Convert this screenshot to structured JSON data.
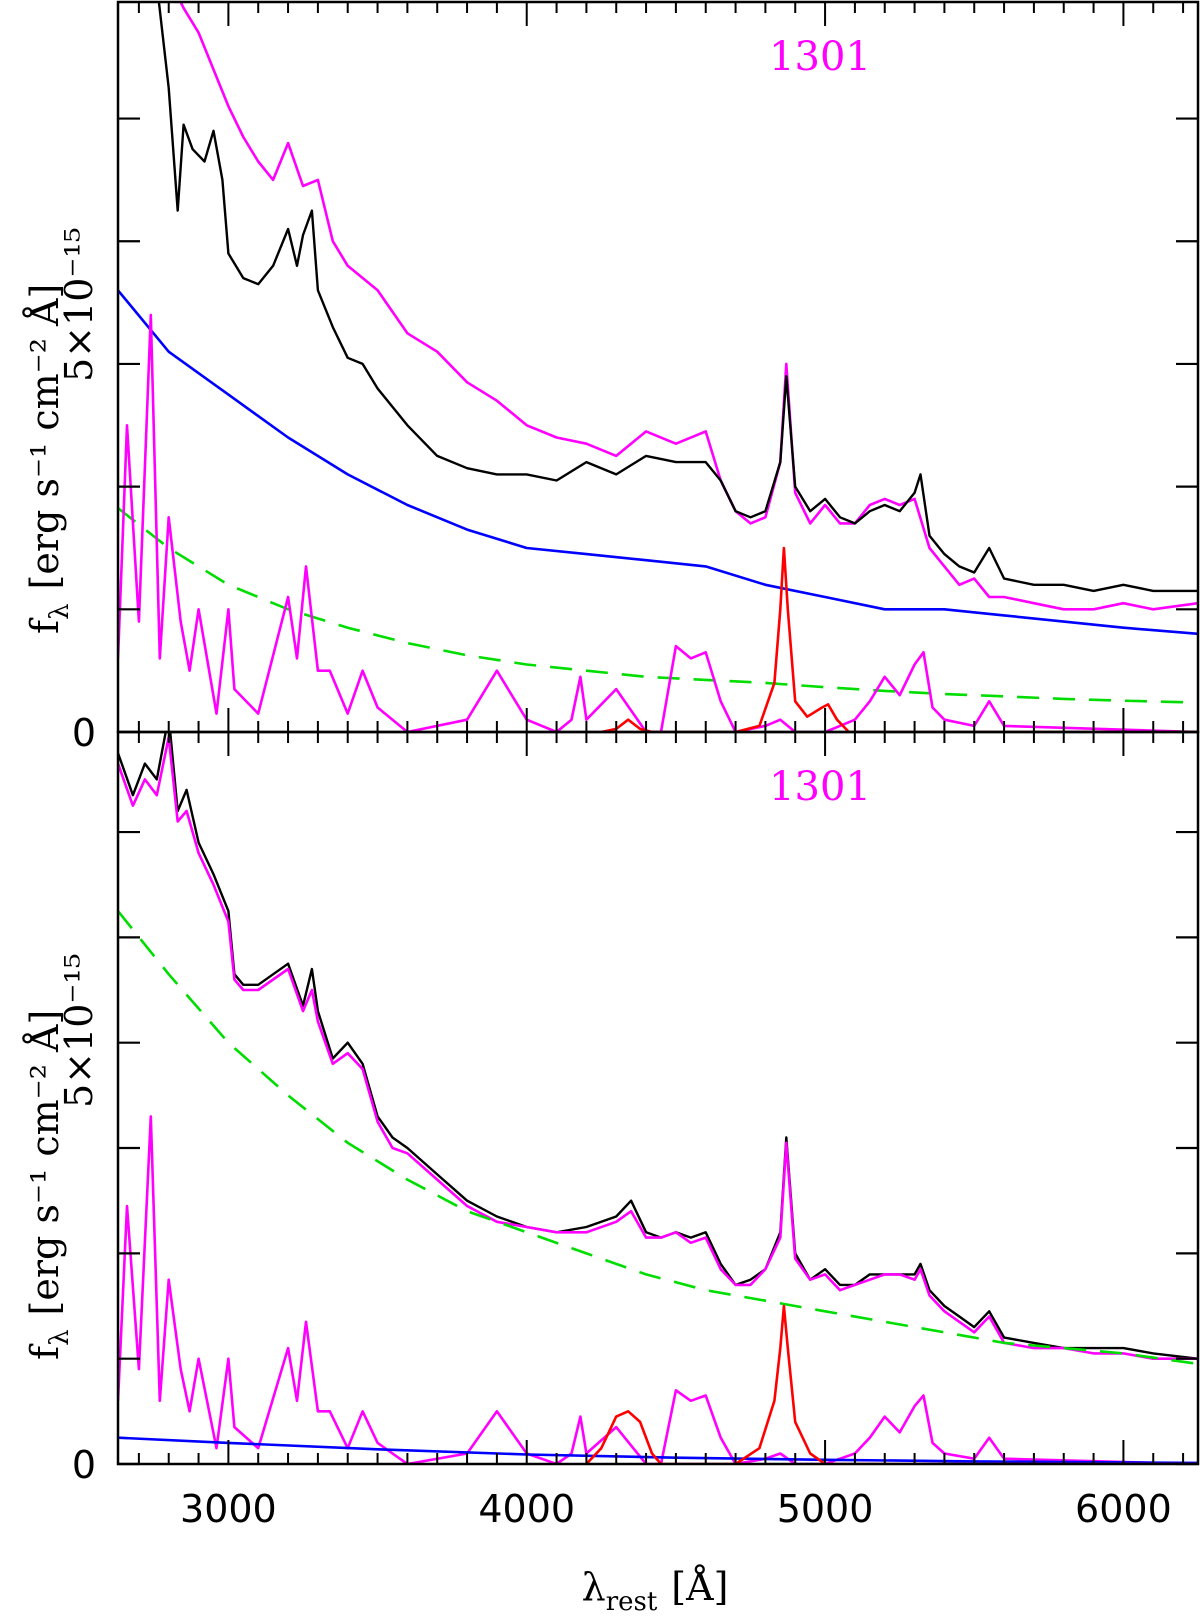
{
  "chart_data": [
    {
      "type": "line",
      "panel": "top",
      "annotation": "1301",
      "ylabel_main": "f",
      "ylabel_sub": "λ",
      "ylabel_units": "[erg s⁻¹ cm⁻² Å]",
      "ylabel_scale": "5×10⁻¹⁵",
      "xlim": [
        2630,
        6250
      ],
      "ylim": [
        0,
        1.19
      ],
      "y_tick_labels": [
        {
          "value": 0,
          "label": "0"
        }
      ],
      "y_tick_values": [
        0,
        0.2,
        0.4,
        0.6,
        0.8,
        1.0,
        1.2
      ],
      "x_tick_values": [
        3000,
        4000,
        5000,
        6000
      ],
      "colors": {
        "black": "#000000",
        "magenta": "#ff00ff",
        "blue": "#0000ff",
        "green": "#00dd00",
        "red": "#ff0000"
      },
      "series": [
        {
          "color": "magenta",
          "style": "solid",
          "x": [
            2630,
            2680,
            2720,
            2760,
            2800,
            2850,
            2900,
            2950,
            3000,
            3050,
            3100,
            3150,
            3200,
            3250,
            3300,
            3350,
            3400,
            3500,
            3600,
            3700,
            3800,
            3900,
            4000,
            4100,
            4200,
            4300,
            4400,
            4500,
            4600,
            4650,
            4700,
            4750,
            4800,
            4850,
            4870,
            4900,
            4950,
            5000,
            5050,
            5100,
            5150,
            5200,
            5250,
            5300,
            5350,
            5400,
            5450,
            5500,
            5550,
            5600,
            5700,
            5800,
            5900,
            6000,
            6100,
            6250
          ],
          "y": [
            1.34,
            1.29,
            1.31,
            1.28,
            1.23,
            1.18,
            1.14,
            1.08,
            1.02,
            0.97,
            0.93,
            0.9,
            0.96,
            0.89,
            0.9,
            0.8,
            0.76,
            0.72,
            0.65,
            0.62,
            0.57,
            0.54,
            0.5,
            0.48,
            0.47,
            0.45,
            0.49,
            0.47,
            0.49,
            0.41,
            0.36,
            0.34,
            0.35,
            0.44,
            0.6,
            0.39,
            0.34,
            0.37,
            0.34,
            0.34,
            0.37,
            0.38,
            0.37,
            0.38,
            0.3,
            0.27,
            0.24,
            0.25,
            0.22,
            0.22,
            0.21,
            0.2,
            0.2,
            0.21,
            0.2,
            0.21
          ]
        },
        {
          "color": "black",
          "style": "solid",
          "x": [
            2630,
            2680,
            2720,
            2760,
            2800,
            2830,
            2850,
            2880,
            2920,
            2950,
            2980,
            3000,
            3050,
            3100,
            3150,
            3200,
            3230,
            3250,
            3280,
            3300,
            3350,
            3400,
            3450,
            3500,
            3600,
            3700,
            3800,
            3900,
            4000,
            4100,
            4200,
            4300,
            4400,
            4500,
            4600,
            4650,
            4700,
            4750,
            4800,
            4850,
            4870,
            4900,
            4950,
            5000,
            5050,
            5100,
            5150,
            5200,
            5250,
            5300,
            5320,
            5350,
            5400,
            5450,
            5500,
            5550,
            5600,
            5700,
            5800,
            5900,
            6000,
            6100,
            6250
          ],
          "y": [
            1.3,
            1.2,
            1.3,
            1.22,
            1.05,
            0.85,
            0.99,
            0.95,
            0.93,
            0.98,
            0.9,
            0.78,
            0.74,
            0.73,
            0.76,
            0.82,
            0.76,
            0.81,
            0.85,
            0.72,
            0.66,
            0.61,
            0.6,
            0.56,
            0.5,
            0.45,
            0.43,
            0.42,
            0.42,
            0.41,
            0.44,
            0.42,
            0.45,
            0.44,
            0.44,
            0.41,
            0.36,
            0.35,
            0.36,
            0.44,
            0.58,
            0.4,
            0.36,
            0.38,
            0.35,
            0.34,
            0.36,
            0.37,
            0.36,
            0.39,
            0.42,
            0.32,
            0.29,
            0.27,
            0.26,
            0.3,
            0.25,
            0.24,
            0.24,
            0.23,
            0.24,
            0.23,
            0.23
          ]
        },
        {
          "color": "blue",
          "style": "solid",
          "x": [
            2630,
            2800,
            3000,
            3200,
            3400,
            3600,
            3800,
            4000,
            4200,
            4400,
            4600,
            4800,
            5000,
            5200,
            5400,
            5600,
            5800,
            6000,
            6250
          ],
          "y": [
            0.72,
            0.62,
            0.55,
            0.48,
            0.42,
            0.37,
            0.33,
            0.3,
            0.29,
            0.28,
            0.27,
            0.24,
            0.22,
            0.2,
            0.2,
            0.19,
            0.18,
            0.17,
            0.16
          ]
        },
        {
          "color": "green",
          "style": "dashed",
          "x": [
            2630,
            2800,
            3000,
            3200,
            3400,
            3600,
            3800,
            4000,
            4200,
            4400,
            4600,
            4800,
            5000,
            5200,
            5400,
            5600,
            5800,
            6000,
            6250
          ],
          "y": [
            0.365,
            0.3,
            0.24,
            0.2,
            0.17,
            0.145,
            0.125,
            0.11,
            0.1,
            0.09,
            0.085,
            0.08,
            0.073,
            0.067,
            0.062,
            0.058,
            0.054,
            0.051,
            0.048
          ]
        },
        {
          "color": "magenta",
          "style": "solid",
          "x": [
            2630,
            2660,
            2700,
            2740,
            2770,
            2800,
            2840,
            2870,
            2900,
            2960,
            3000,
            3020,
            3100,
            3200,
            3230,
            3260,
            3300,
            3340,
            3400,
            3450,
            3500,
            3550,
            3600,
            3800,
            3900,
            4000,
            4100,
            4150,
            4180,
            4200,
            4300,
            4400,
            4450,
            4500,
            4550,
            4600,
            4650,
            4700,
            4800,
            4850,
            4900,
            5000,
            5050,
            5100,
            5150,
            5200,
            5250,
            5300,
            5330,
            5360,
            5400,
            5500,
            5550,
            5600,
            6250
          ],
          "y": [
            0.12,
            0.5,
            0.18,
            0.68,
            0.12,
            0.35,
            0.18,
            0.1,
            0.2,
            0.03,
            0.2,
            0.07,
            0.03,
            0.22,
            0.12,
            0.27,
            0.1,
            0.1,
            0.03,
            0.1,
            0.04,
            0.02,
            0.0,
            0.02,
            0.1,
            0.02,
            0.0,
            0.02,
            0.09,
            0.02,
            0.07,
            0.0,
            0.0,
            0.14,
            0.12,
            0.13,
            0.05,
            0.0,
            0.01,
            0.02,
            0.0,
            0.0,
            0.01,
            0.02,
            0.05,
            0.09,
            0.06,
            0.11,
            0.13,
            0.04,
            0.02,
            0.01,
            0.05,
            0.01,
            0.0
          ]
        },
        {
          "color": "red",
          "style": "solid",
          "x": [
            4250,
            4300,
            4340,
            4380,
            4420,
            4700,
            4780,
            4830,
            4850,
            4862,
            4875,
            4900,
            4940,
            4990,
            5010,
            5040,
            5080,
            6250
          ],
          "y": [
            0.0,
            0.005,
            0.02,
            0.005,
            0.0,
            0.0,
            0.01,
            0.08,
            0.2,
            0.3,
            0.2,
            0.05,
            0.025,
            0.04,
            0.045,
            0.02,
            0.0,
            0.0
          ]
        }
      ]
    },
    {
      "type": "line",
      "panel": "bottom",
      "annotation": "1301",
      "ylabel_main": "f",
      "ylabel_sub": "λ",
      "ylabel_units": "[erg s⁻¹ cm⁻² Å]",
      "ylabel_scale": "5×10⁻¹⁵",
      "xlabel_main": "λ",
      "xlabel_sub": "rest",
      "xlabel_units": "[Å]",
      "xlim": [
        2630,
        6250
      ],
      "ylim": [
        0,
        1.39
      ],
      "y_tick_labels": [
        {
          "value": 0,
          "label": "0"
        }
      ],
      "y_tick_values": [
        0,
        0.2,
        0.4,
        0.6,
        0.8,
        1.0,
        1.2
      ],
      "x_tick_values": [
        3000,
        4000,
        5000,
        6000
      ],
      "x_tick_labels": [
        "3000",
        "4000",
        "5000",
        "6000"
      ],
      "series": [
        {
          "color": "black",
          "style": "solid",
          "x": [
            2630,
            2680,
            2720,
            2760,
            2800,
            2830,
            2860,
            2900,
            2950,
            3000,
            3020,
            3050,
            3100,
            3200,
            3250,
            3280,
            3300,
            3350,
            3400,
            3450,
            3500,
            3550,
            3600,
            3700,
            3800,
            3900,
            4000,
            4100,
            4200,
            4300,
            4350,
            4400,
            4450,
            4500,
            4550,
            4600,
            4650,
            4700,
            4750,
            4800,
            4850,
            4870,
            4900,
            4950,
            5000,
            5050,
            5100,
            5150,
            5200,
            5250,
            5300,
            5320,
            5350,
            5400,
            5450,
            5500,
            5550,
            5600,
            5700,
            5800,
            5900,
            6000,
            6100,
            6250
          ],
          "y": [
            1.35,
            1.27,
            1.33,
            1.3,
            1.42,
            1.24,
            1.28,
            1.18,
            1.12,
            1.05,
            0.93,
            0.91,
            0.91,
            0.95,
            0.87,
            0.94,
            0.86,
            0.77,
            0.8,
            0.76,
            0.66,
            0.62,
            0.6,
            0.55,
            0.5,
            0.47,
            0.45,
            0.44,
            0.45,
            0.47,
            0.5,
            0.44,
            0.43,
            0.44,
            0.43,
            0.44,
            0.38,
            0.34,
            0.35,
            0.37,
            0.44,
            0.62,
            0.4,
            0.35,
            0.37,
            0.34,
            0.34,
            0.36,
            0.36,
            0.36,
            0.36,
            0.38,
            0.33,
            0.3,
            0.28,
            0.26,
            0.29,
            0.24,
            0.23,
            0.22,
            0.22,
            0.22,
            0.21,
            0.2
          ]
        },
        {
          "color": "magenta",
          "style": "solid",
          "x": [
            2630,
            2680,
            2720,
            2760,
            2800,
            2830,
            2860,
            2900,
            2950,
            3000,
            3020,
            3050,
            3100,
            3200,
            3250,
            3280,
            3300,
            3350,
            3400,
            3450,
            3500,
            3550,
            3600,
            3700,
            3800,
            3900,
            4000,
            4100,
            4200,
            4300,
            4350,
            4400,
            4450,
            4500,
            4550,
            4600,
            4650,
            4700,
            4750,
            4800,
            4850,
            4870,
            4900,
            4950,
            5000,
            5050,
            5100,
            5150,
            5200,
            5250,
            5300,
            5320,
            5350,
            5400,
            5450,
            5500,
            5550,
            5600,
            5700,
            5800,
            5900,
            6000,
            6100,
            6250
          ],
          "y": [
            1.33,
            1.25,
            1.3,
            1.27,
            1.38,
            1.22,
            1.24,
            1.16,
            1.1,
            1.03,
            0.92,
            0.9,
            0.9,
            0.94,
            0.86,
            0.9,
            0.84,
            0.76,
            0.78,
            0.75,
            0.65,
            0.6,
            0.59,
            0.54,
            0.49,
            0.46,
            0.45,
            0.44,
            0.44,
            0.46,
            0.48,
            0.43,
            0.43,
            0.44,
            0.42,
            0.43,
            0.37,
            0.34,
            0.34,
            0.37,
            0.43,
            0.61,
            0.39,
            0.35,
            0.36,
            0.33,
            0.34,
            0.35,
            0.36,
            0.36,
            0.35,
            0.37,
            0.32,
            0.29,
            0.27,
            0.25,
            0.28,
            0.23,
            0.22,
            0.22,
            0.21,
            0.21,
            0.2,
            0.2
          ]
        },
        {
          "color": "green",
          "style": "dashed",
          "x": [
            2630,
            2800,
            3000,
            3200,
            3400,
            3600,
            3800,
            4000,
            4200,
            4400,
            4600,
            4800,
            5000,
            5200,
            5400,
            5600,
            5800,
            6000,
            6250
          ],
          "y": [
            1.05,
            0.93,
            0.8,
            0.7,
            0.61,
            0.54,
            0.48,
            0.44,
            0.4,
            0.36,
            0.33,
            0.31,
            0.29,
            0.27,
            0.25,
            0.23,
            0.22,
            0.21,
            0.19
          ]
        },
        {
          "color": "magenta",
          "style": "solid",
          "x": [
            2630,
            2660,
            2700,
            2740,
            2770,
            2800,
            2840,
            2870,
            2900,
            2960,
            3000,
            3020,
            3100,
            3200,
            3230,
            3260,
            3300,
            3340,
            3400,
            3450,
            3500,
            3550,
            3600,
            3800,
            3900,
            4000,
            4100,
            4150,
            4180,
            4200,
            4300,
            4400,
            4450,
            4500,
            4550,
            4600,
            4650,
            4700,
            4800,
            4850,
            4900,
            5000,
            5050,
            5100,
            5150,
            5200,
            5250,
            5300,
            5330,
            5360,
            5400,
            5500,
            5550,
            5600,
            6250
          ],
          "y": [
            0.12,
            0.49,
            0.18,
            0.66,
            0.12,
            0.35,
            0.18,
            0.1,
            0.2,
            0.03,
            0.2,
            0.07,
            0.03,
            0.22,
            0.12,
            0.27,
            0.1,
            0.1,
            0.03,
            0.1,
            0.04,
            0.02,
            0.0,
            0.02,
            0.1,
            0.02,
            0.0,
            0.02,
            0.09,
            0.02,
            0.07,
            0.0,
            0.0,
            0.14,
            0.12,
            0.13,
            0.05,
            0.0,
            0.01,
            0.02,
            0.0,
            0.0,
            0.01,
            0.02,
            0.05,
            0.09,
            0.06,
            0.11,
            0.13,
            0.04,
            0.02,
            0.01,
            0.05,
            0.01,
            0.0
          ]
        },
        {
          "color": "blue",
          "style": "solid",
          "x": [
            2630,
            3000,
            3500,
            4000,
            4500,
            5000,
            5500,
            6000,
            6250
          ],
          "y": [
            0.05,
            0.04,
            0.028,
            0.018,
            0.012,
            0.008,
            0.005,
            0.003,
            0.002
          ]
        },
        {
          "color": "red",
          "style": "solid",
          "x": [
            4200,
            4250,
            4300,
            4340,
            4380,
            4420,
            4450,
            4700,
            4780,
            4830,
            4850,
            4862,
            4875,
            4900,
            4950,
            5000,
            6250
          ],
          "y": [
            0.0,
            0.03,
            0.09,
            0.1,
            0.08,
            0.02,
            0.0,
            0.0,
            0.03,
            0.12,
            0.22,
            0.3,
            0.22,
            0.08,
            0.02,
            0.0,
            0.0
          ]
        }
      ]
    }
  ]
}
